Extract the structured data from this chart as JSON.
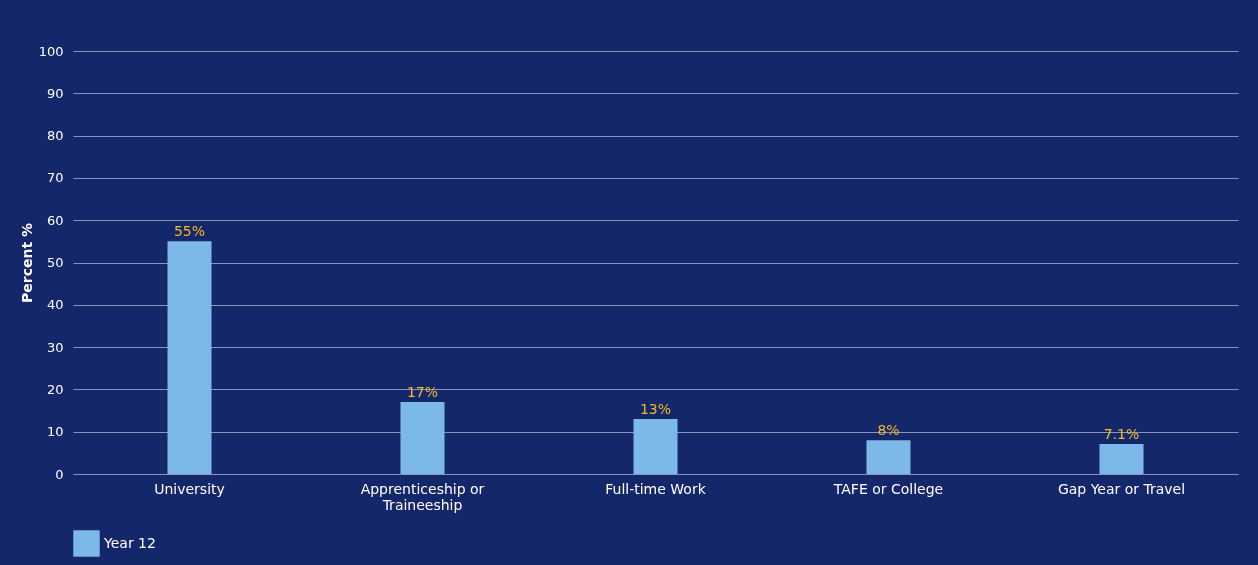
{
  "chart_data": {
    "type": "bar",
    "ylabel": "Percent %",
    "categories": [
      "University",
      "Apprenticeship or Traineeship",
      "Full-time Work",
      "TAFE or College",
      "Gap Year or Travel"
    ],
    "series": [
      {
        "name": "Year 12",
        "color": "#7cb9e8",
        "values": [
          55,
          17,
          13,
          8,
          7.1
        ],
        "value_labels": [
          "55%",
          "17%",
          "13%",
          "8%",
          "7.1%"
        ]
      }
    ],
    "ylim": [
      0,
      100
    ],
    "yticks": [
      0,
      10,
      20,
      30,
      40,
      50,
      60,
      70,
      80,
      90,
      100
    ],
    "grid": "y",
    "legend": "bottom"
  }
}
